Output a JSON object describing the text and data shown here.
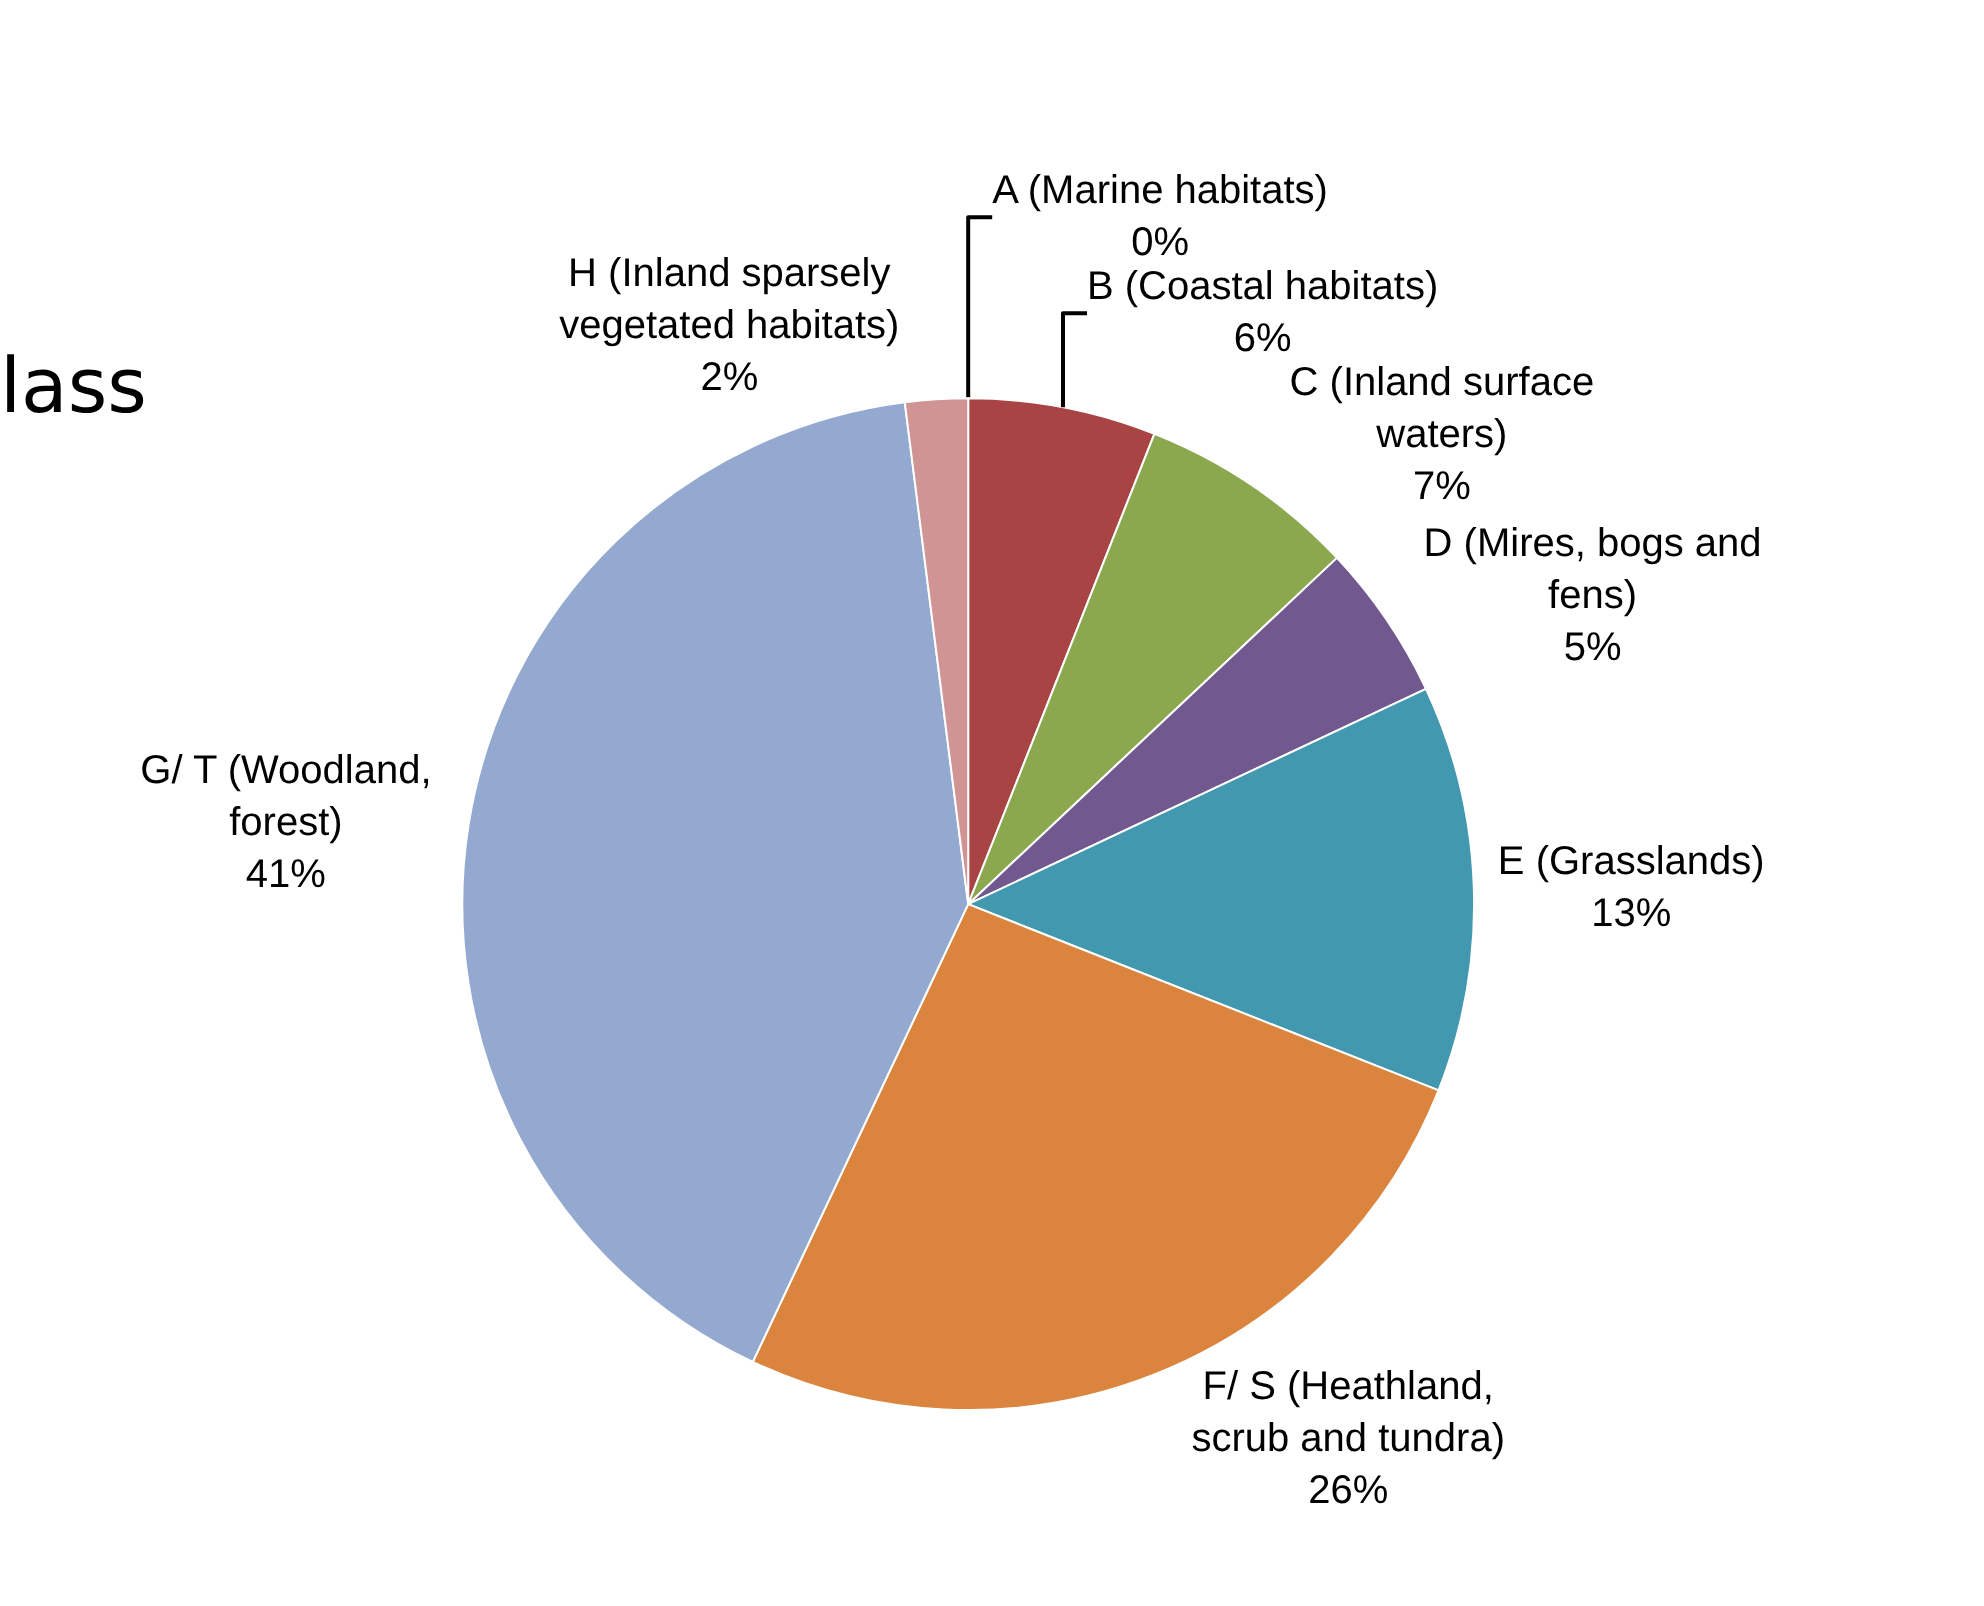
{
  "chart_data": {
    "type": "pie",
    "title": "lass",
    "categories": [
      "A (Marine habitats)",
      "B (Coastal habitats)",
      "C (Inland surface waters)",
      "D (Mires, bogs and fens)",
      "E (Grasslands)",
      "F/ S (Heathland, scrub and tundra)",
      "G/ T (Woodland, forest)",
      "H (Inland sparsely vegetated habitats)"
    ],
    "values": [
      0,
      6,
      7,
      5,
      13,
      26,
      41,
      2
    ],
    "value_labels": [
      "0%",
      "6%",
      "7%",
      "5%",
      "13%",
      "26%",
      "41%",
      "2%"
    ],
    "colors": [
      "#4f81bd",
      "#a84444",
      "#8ba84e",
      "#71588f",
      "#4298ae",
      "#db843d",
      "#93a9cf",
      "#d09494"
    ],
    "legend": false
  }
}
